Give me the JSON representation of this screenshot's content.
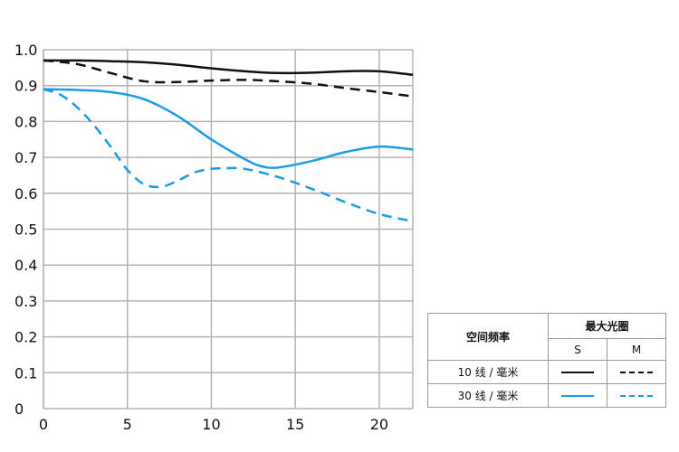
{
  "chart_data": {
    "type": "line",
    "xlim": [
      0,
      22
    ],
    "ylim": [
      0,
      1.0
    ],
    "x_ticks": [
      0,
      5,
      10,
      15,
      20
    ],
    "x_tick_labels": [
      "0",
      "5",
      "10",
      "15",
      "20"
    ],
    "y_ticks": [
      0,
      0.1,
      0.2,
      0.3,
      0.4,
      0.5,
      0.6,
      0.7,
      0.8,
      0.9,
      1.0
    ],
    "y_tick_labels": [
      "0",
      "0.1",
      "0.2",
      "0.3",
      "0.4",
      "0.5",
      "0.6",
      "0.7",
      "0.8",
      "0.9",
      "1.0"
    ],
    "grid": true,
    "legend_placement": "bottom-right",
    "series": [
      {
        "key": "10_S",
        "color": "#111111",
        "dashed": false,
        "x": [
          0,
          2,
          4,
          6,
          8,
          10,
          12,
          14,
          16,
          18,
          20,
          22
        ],
        "y": [
          0.97,
          0.97,
          0.968,
          0.965,
          0.958,
          0.948,
          0.94,
          0.935,
          0.936,
          0.94,
          0.94,
          0.93
        ]
      },
      {
        "key": "10_M",
        "color": "#111111",
        "dashed": true,
        "x": [
          0,
          2,
          4,
          6,
          8,
          10,
          12,
          14,
          16,
          18,
          20,
          22
        ],
        "y": [
          0.97,
          0.96,
          0.935,
          0.912,
          0.91,
          0.914,
          0.916,
          0.912,
          0.905,
          0.893,
          0.882,
          0.87
        ]
      },
      {
        "key": "30_S",
        "color": "#1a9de6",
        "dashed": false,
        "x": [
          0,
          2,
          4,
          6,
          8,
          10,
          12,
          13,
          14,
          16,
          18,
          20,
          22
        ],
        "y": [
          0.89,
          0.888,
          0.882,
          0.862,
          0.815,
          0.75,
          0.695,
          0.675,
          0.672,
          0.69,
          0.715,
          0.73,
          0.722
        ]
      },
      {
        "key": "30_M",
        "color": "#1a9de6",
        "dashed": true,
        "x": [
          0,
          1,
          2,
          3,
          4,
          5,
          6,
          7,
          8,
          9,
          10,
          11,
          12,
          14,
          16,
          18,
          20,
          22
        ],
        "y": [
          0.89,
          0.875,
          0.84,
          0.79,
          0.73,
          0.665,
          0.625,
          0.618,
          0.635,
          0.658,
          0.668,
          0.67,
          0.668,
          0.645,
          0.612,
          0.575,
          0.542,
          0.522
        ]
      }
    ]
  },
  "legend": {
    "spatial_freq_label": "空间频率",
    "max_aperture_label": "最大光圈",
    "s_label": "S",
    "m_label": "M",
    "row_10_label": "10 线 / 毫米",
    "row_30_label": "30 线 / 毫米"
  }
}
